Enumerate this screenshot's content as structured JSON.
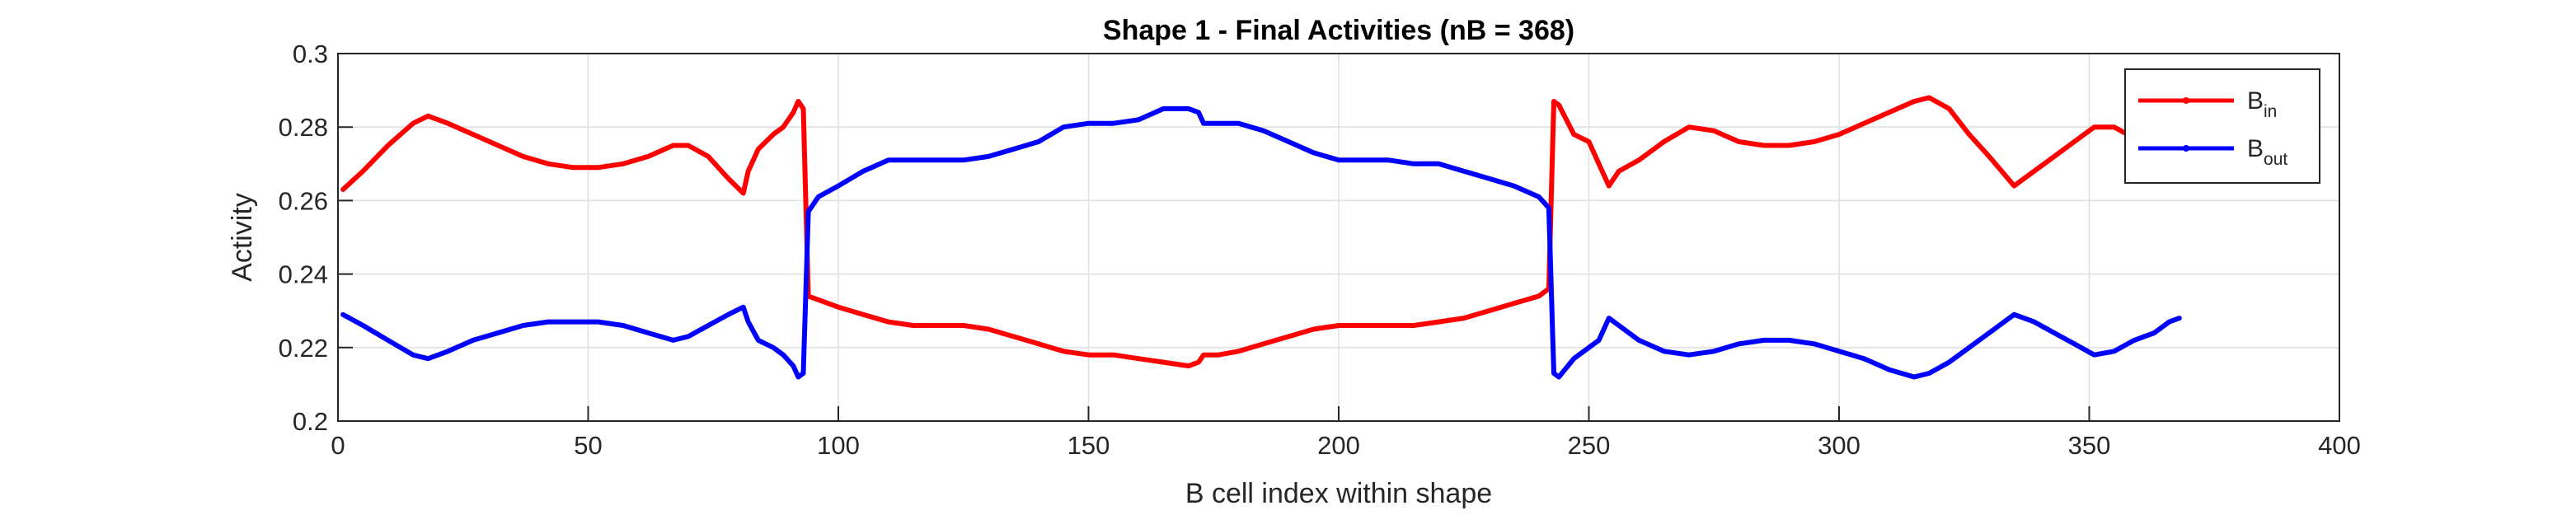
{
  "chart_data": {
    "type": "line",
    "title": "Shape 1 - Final Activities (nB = 368)",
    "xlabel": "B cell index within shape",
    "ylabel": "Activity",
    "xlim": [
      0,
      400
    ],
    "ylim": [
      0.2,
      0.3
    ],
    "xticks": [
      0,
      50,
      100,
      150,
      200,
      250,
      300,
      350,
      400
    ],
    "xtick_labels": [
      "0",
      "50",
      "100",
      "150",
      "200",
      "250",
      "300",
      "350",
      "400"
    ],
    "yticks": [
      0.2,
      0.22,
      0.24,
      0.26,
      0.28,
      0.3
    ],
    "ytick_labels": [
      "0.2",
      "0.22",
      "0.24",
      "0.26",
      "0.28",
      "0.3"
    ],
    "grid": true,
    "legend_position": "top-right",
    "series": [
      {
        "name": "B_in",
        "legend_main": "B",
        "legend_sub": "in",
        "color": "#ff0000",
        "x": [
          1,
          5,
          10,
          15,
          18,
          22,
          27,
          32,
          37,
          42,
          47,
          52,
          57,
          62,
          67,
          70,
          74,
          78,
          81,
          82,
          84,
          87,
          89,
          91,
          92,
          93,
          94,
          96,
          100,
          105,
          110,
          115,
          120,
          125,
          130,
          135,
          140,
          145,
          150,
          155,
          160,
          165,
          170,
          172,
          173,
          176,
          180,
          185,
          190,
          195,
          200,
          205,
          210,
          215,
          220,
          225,
          230,
          235,
          240,
          242,
          243,
          244,
          247,
          250,
          252,
          254,
          256,
          260,
          265,
          270,
          275,
          280,
          285,
          290,
          295,
          300,
          305,
          310,
          315,
          318,
          322,
          326,
          330,
          335,
          339,
          343,
          347,
          351,
          355,
          359,
          363,
          366,
          368
        ],
        "y": [
          0.263,
          0.268,
          0.275,
          0.281,
          0.283,
          0.281,
          0.278,
          0.275,
          0.272,
          0.27,
          0.269,
          0.269,
          0.27,
          0.272,
          0.275,
          0.275,
          0.272,
          0.266,
          0.262,
          0.268,
          0.274,
          0.278,
          0.28,
          0.284,
          0.287,
          0.285,
          0.234,
          0.233,
          0.231,
          0.229,
          0.227,
          0.226,
          0.226,
          0.226,
          0.225,
          0.223,
          0.221,
          0.219,
          0.218,
          0.218,
          0.217,
          0.216,
          0.215,
          0.216,
          0.218,
          0.218,
          0.219,
          0.221,
          0.223,
          0.225,
          0.226,
          0.226,
          0.226,
          0.226,
          0.227,
          0.228,
          0.23,
          0.232,
          0.234,
          0.236,
          0.287,
          0.286,
          0.278,
          0.276,
          0.27,
          0.264,
          0.268,
          0.271,
          0.276,
          0.28,
          0.279,
          0.276,
          0.275,
          0.275,
          0.276,
          0.278,
          0.281,
          0.284,
          0.287,
          0.288,
          0.285,
          0.278,
          0.272,
          0.264,
          0.268,
          0.272,
          0.276,
          0.28,
          0.28,
          0.277,
          0.272,
          0.266,
          0.27
        ]
      },
      {
        "name": "B_out",
        "legend_main": "B",
        "legend_sub": "out",
        "color": "#0000ff",
        "x": [
          1,
          5,
          10,
          15,
          18,
          22,
          27,
          32,
          37,
          42,
          47,
          52,
          57,
          62,
          67,
          70,
          74,
          78,
          81,
          82,
          84,
          87,
          89,
          91,
          92,
          93,
          94,
          96,
          100,
          105,
          110,
          115,
          120,
          125,
          130,
          135,
          140,
          145,
          150,
          155,
          160,
          165,
          170,
          172,
          173,
          176,
          180,
          185,
          190,
          195,
          200,
          205,
          210,
          215,
          220,
          225,
          230,
          235,
          240,
          242,
          243,
          244,
          247,
          250,
          252,
          254,
          256,
          260,
          265,
          270,
          275,
          280,
          285,
          290,
          295,
          300,
          305,
          310,
          315,
          318,
          322,
          326,
          330,
          335,
          339,
          343,
          347,
          351,
          355,
          359,
          363,
          366,
          368
        ],
        "y": [
          0.229,
          0.226,
          0.222,
          0.218,
          0.217,
          0.219,
          0.222,
          0.224,
          0.226,
          0.227,
          0.227,
          0.227,
          0.226,
          0.224,
          0.222,
          0.223,
          0.226,
          0.229,
          0.231,
          0.227,
          0.222,
          0.22,
          0.218,
          0.215,
          0.212,
          0.213,
          0.257,
          0.261,
          0.264,
          0.268,
          0.271,
          0.271,
          0.271,
          0.271,
          0.272,
          0.274,
          0.276,
          0.28,
          0.281,
          0.281,
          0.282,
          0.285,
          0.285,
          0.284,
          0.281,
          0.281,
          0.281,
          0.279,
          0.276,
          0.273,
          0.271,
          0.271,
          0.271,
          0.27,
          0.27,
          0.268,
          0.266,
          0.264,
          0.261,
          0.258,
          0.213,
          0.212,
          0.217,
          0.22,
          0.222,
          0.228,
          0.226,
          0.222,
          0.219,
          0.218,
          0.219,
          0.221,
          0.222,
          0.222,
          0.221,
          0.219,
          0.217,
          0.214,
          0.212,
          0.213,
          0.216,
          0.22,
          0.224,
          0.229,
          0.227,
          0.224,
          0.221,
          0.218,
          0.219,
          0.222,
          0.224,
          0.227,
          0.228
        ]
      }
    ]
  }
}
